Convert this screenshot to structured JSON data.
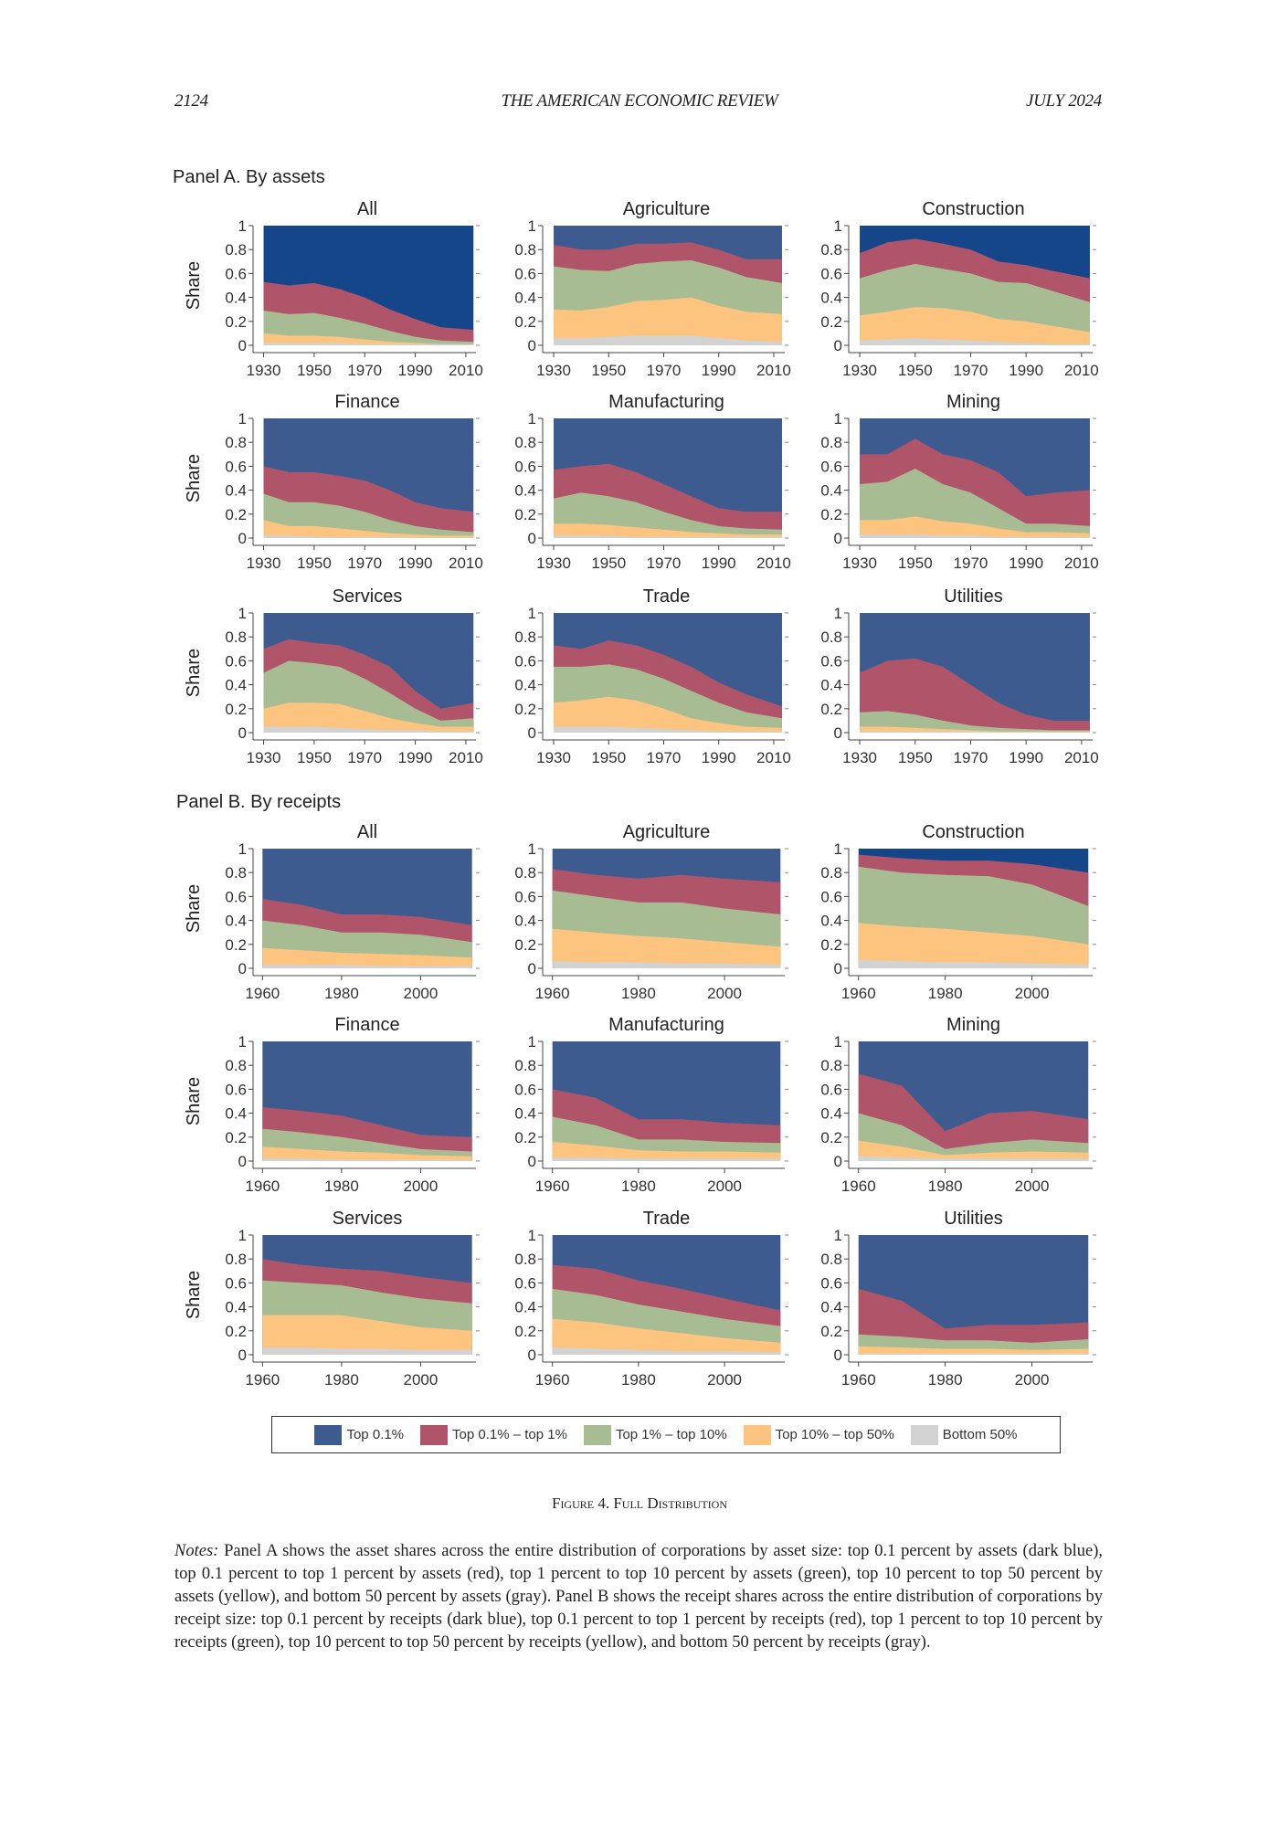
{
  "header": {
    "page_number": "2124",
    "journal": "THE AMERICAN ECONOMIC REVIEW",
    "date": "JULY 2024"
  },
  "panels": [
    {
      "label": "Panel A. By assets"
    },
    {
      "label": "Panel B. By receipts"
    }
  ],
  "legend": [
    {
      "label": "Top 0.1%",
      "color": "#3e5b8f"
    },
    {
      "label": "Top 0.1% – top 1%",
      "color": "#b0546a"
    },
    {
      "label": "Top 1% – top 10%",
      "color": "#a8bc94"
    },
    {
      "label": "Top 10% – top 50%",
      "color": "#fdc47f"
    },
    {
      "label": "Bottom 50%",
      "color": "#d2d2d2"
    }
  ],
  "caption": "Figure 4. Full Distribution",
  "notes": {
    "label": "Notes:",
    "text": "Panel A shows the asset shares across the entire distribution of corporations by asset size: top 0.1 percent by assets (dark blue), top 0.1 percent to top 1 percent by assets (red), top 1 percent to top 10 percent by assets (green), top 10 percent to top 50 percent by assets (yellow), and bottom 50 percent by assets (gray). Panel B shows the receipt shares across the entire distribution of corporations by receipt size: top 0.1 percent by receipts (dark blue), top 0.1 percent to top 1 percent by receipts (red), top 1 percent to top 10 percent by receipts (green), top 10 percent to top 50 percent by receipts (yellow), and bottom 50 percent by receipts (gray)."
  },
  "chart_data": {
    "type": "area",
    "stacking": "cumulative upper boundaries from bottom: Bottom 50%, +Top 10%–top 50%, +Top 1%–top 10%, +Top 0.1%–top 1%; Top 0.1% fills to 1",
    "ylabel": "Share",
    "yticks": [
      "0",
      "0.2",
      "0.4",
      "0.6",
      "0.8",
      "1"
    ],
    "ylim": [
      0,
      1
    ],
    "panelA": {
      "x": [
        1930,
        1940,
        1950,
        1960,
        1970,
        1980,
        1990,
        2000,
        2013
      ],
      "xlim": [
        1928,
        2014
      ],
      "xticks": [
        "1930",
        "1950",
        "1970",
        "1990",
        "2010"
      ],
      "charts": [
        {
          "title": "All",
          "top_color": "#15468a",
          "bottom": [
            0.02,
            0.02,
            0.02,
            0.02,
            0.01,
            0.01,
            0.01,
            0.01,
            0.01
          ],
          "yellow": [
            0.1,
            0.08,
            0.08,
            0.07,
            0.05,
            0.03,
            0.02,
            0.01,
            0.01
          ],
          "green": [
            0.29,
            0.26,
            0.27,
            0.23,
            0.18,
            0.12,
            0.07,
            0.04,
            0.03
          ],
          "red": [
            0.53,
            0.5,
            0.52,
            0.47,
            0.4,
            0.3,
            0.22,
            0.15,
            0.13
          ]
        },
        {
          "title": "Agriculture",
          "top_color": "#3e5b8f",
          "bottom": [
            0.06,
            0.06,
            0.07,
            0.08,
            0.08,
            0.08,
            0.06,
            0.04,
            0.03
          ],
          "yellow": [
            0.3,
            0.29,
            0.32,
            0.37,
            0.38,
            0.4,
            0.33,
            0.28,
            0.26
          ],
          "green": [
            0.66,
            0.63,
            0.62,
            0.68,
            0.7,
            0.71,
            0.65,
            0.57,
            0.52
          ],
          "red": [
            0.84,
            0.8,
            0.8,
            0.85,
            0.85,
            0.86,
            0.8,
            0.72,
            0.72
          ]
        },
        {
          "title": "Construction",
          "top_color": "#15468a",
          "bottom": [
            0.04,
            0.05,
            0.06,
            0.05,
            0.04,
            0.03,
            0.02,
            0.01,
            0.01
          ],
          "yellow": [
            0.25,
            0.28,
            0.32,
            0.31,
            0.28,
            0.22,
            0.2,
            0.16,
            0.11
          ],
          "green": [
            0.56,
            0.63,
            0.68,
            0.64,
            0.6,
            0.53,
            0.52,
            0.45,
            0.36
          ],
          "red": [
            0.77,
            0.86,
            0.89,
            0.85,
            0.8,
            0.7,
            0.67,
            0.62,
            0.56
          ]
        },
        {
          "title": "Finance",
          "top_color": "#3e5b8f",
          "bottom": [
            0.02,
            0.02,
            0.01,
            0.01,
            0.01,
            0.01,
            0.005,
            0.005,
            0.005
          ],
          "yellow": [
            0.15,
            0.1,
            0.1,
            0.08,
            0.06,
            0.04,
            0.03,
            0.02,
            0.02
          ],
          "green": [
            0.37,
            0.3,
            0.3,
            0.27,
            0.22,
            0.15,
            0.1,
            0.07,
            0.05
          ],
          "red": [
            0.6,
            0.55,
            0.55,
            0.52,
            0.48,
            0.4,
            0.3,
            0.25,
            0.22
          ]
        },
        {
          "title": "Manufacturing",
          "top_color": "#3e5b8f",
          "bottom": [
            0.02,
            0.02,
            0.02,
            0.01,
            0.01,
            0.01,
            0.01,
            0.01,
            0.01
          ],
          "yellow": [
            0.12,
            0.12,
            0.11,
            0.09,
            0.07,
            0.05,
            0.04,
            0.03,
            0.03
          ],
          "green": [
            0.33,
            0.38,
            0.35,
            0.3,
            0.22,
            0.15,
            0.1,
            0.08,
            0.07
          ],
          "red": [
            0.57,
            0.6,
            0.62,
            0.55,
            0.45,
            0.35,
            0.25,
            0.22,
            0.22
          ]
        },
        {
          "title": "Mining",
          "top_color": "#3e5b8f",
          "bottom": [
            0.03,
            0.03,
            0.03,
            0.02,
            0.02,
            0.01,
            0.01,
            0.01,
            0.01
          ],
          "yellow": [
            0.15,
            0.15,
            0.18,
            0.14,
            0.12,
            0.08,
            0.05,
            0.05,
            0.04
          ],
          "green": [
            0.45,
            0.47,
            0.58,
            0.45,
            0.38,
            0.25,
            0.12,
            0.12,
            0.1
          ],
          "red": [
            0.7,
            0.7,
            0.83,
            0.7,
            0.65,
            0.55,
            0.35,
            0.38,
            0.4
          ]
        },
        {
          "title": "Services",
          "top_color": "#3e5b8f",
          "bottom": [
            0.05,
            0.05,
            0.05,
            0.04,
            0.03,
            0.02,
            0.02,
            0.01,
            0.01
          ],
          "yellow": [
            0.2,
            0.25,
            0.25,
            0.24,
            0.18,
            0.12,
            0.08,
            0.05,
            0.05
          ],
          "green": [
            0.5,
            0.6,
            0.58,
            0.55,
            0.45,
            0.33,
            0.2,
            0.1,
            0.12
          ],
          "red": [
            0.7,
            0.78,
            0.75,
            0.73,
            0.65,
            0.55,
            0.35,
            0.2,
            0.25
          ]
        },
        {
          "title": "Trade",
          "top_color": "#3e5b8f",
          "bottom": [
            0.05,
            0.05,
            0.05,
            0.04,
            0.03,
            0.02,
            0.01,
            0.01,
            0.01
          ],
          "yellow": [
            0.25,
            0.27,
            0.3,
            0.27,
            0.2,
            0.12,
            0.08,
            0.05,
            0.04
          ],
          "green": [
            0.55,
            0.55,
            0.57,
            0.53,
            0.45,
            0.35,
            0.25,
            0.17,
            0.12
          ],
          "red": [
            0.73,
            0.7,
            0.77,
            0.73,
            0.65,
            0.55,
            0.42,
            0.32,
            0.22
          ]
        },
        {
          "title": "Utilities",
          "top_color": "#3e5b8f",
          "bottom": [
            0.01,
            0.01,
            0.01,
            0.01,
            0.01,
            0.005,
            0.005,
            0.005,
            0.005
          ],
          "yellow": [
            0.05,
            0.05,
            0.04,
            0.03,
            0.02,
            0.01,
            0.01,
            0.01,
            0.01
          ],
          "green": [
            0.17,
            0.18,
            0.15,
            0.1,
            0.06,
            0.04,
            0.03,
            0.02,
            0.02
          ],
          "red": [
            0.5,
            0.6,
            0.62,
            0.55,
            0.4,
            0.25,
            0.15,
            0.1,
            0.1
          ]
        }
      ]
    },
    "panelB": {
      "x": [
        1960,
        1970,
        1980,
        1990,
        2000,
        2013
      ],
      "xlim": [
        1959,
        2014
      ],
      "xticks": [
        "1960",
        "1980",
        "2000"
      ],
      "charts": [
        {
          "title": "All",
          "top_color": "#3e5b8f",
          "bottom": [
            0.03,
            0.03,
            0.03,
            0.02,
            0.02,
            0.02
          ],
          "yellow": [
            0.17,
            0.15,
            0.13,
            0.12,
            0.11,
            0.09
          ],
          "green": [
            0.4,
            0.36,
            0.3,
            0.3,
            0.28,
            0.22
          ],
          "red": [
            0.58,
            0.53,
            0.45,
            0.45,
            0.43,
            0.36
          ]
        },
        {
          "title": "Agriculture",
          "top_color": "#3e5b8f",
          "bottom": [
            0.06,
            0.05,
            0.05,
            0.04,
            0.04,
            0.03
          ],
          "yellow": [
            0.33,
            0.3,
            0.27,
            0.25,
            0.22,
            0.18
          ],
          "green": [
            0.65,
            0.6,
            0.55,
            0.55,
            0.5,
            0.45
          ],
          "red": [
            0.83,
            0.78,
            0.75,
            0.78,
            0.75,
            0.72
          ]
        },
        {
          "title": "Construction",
          "top_color": "#15468a",
          "bottom": [
            0.07,
            0.06,
            0.05,
            0.05,
            0.04,
            0.03
          ],
          "yellow": [
            0.38,
            0.35,
            0.33,
            0.3,
            0.27,
            0.2
          ],
          "green": [
            0.85,
            0.8,
            0.78,
            0.77,
            0.7,
            0.52
          ],
          "red": [
            0.95,
            0.92,
            0.9,
            0.9,
            0.87,
            0.8
          ]
        },
        {
          "title": "Finance",
          "top_color": "#3e5b8f",
          "bottom": [
            0.02,
            0.02,
            0.01,
            0.01,
            0.01,
            0.01
          ],
          "yellow": [
            0.12,
            0.1,
            0.08,
            0.07,
            0.05,
            0.04
          ],
          "green": [
            0.27,
            0.24,
            0.2,
            0.15,
            0.1,
            0.08
          ],
          "red": [
            0.45,
            0.42,
            0.38,
            0.3,
            0.22,
            0.2
          ]
        },
        {
          "title": "Manufacturing",
          "top_color": "#3e5b8f",
          "bottom": [
            0.03,
            0.03,
            0.02,
            0.02,
            0.02,
            0.02
          ],
          "yellow": [
            0.16,
            0.13,
            0.09,
            0.08,
            0.08,
            0.07
          ],
          "green": [
            0.37,
            0.3,
            0.18,
            0.18,
            0.16,
            0.15
          ],
          "red": [
            0.6,
            0.53,
            0.35,
            0.35,
            0.32,
            0.3
          ]
        },
        {
          "title": "Mining",
          "top_color": "#3e5b8f",
          "bottom": [
            0.04,
            0.03,
            0.02,
            0.02,
            0.02,
            0.02
          ],
          "yellow": [
            0.17,
            0.12,
            0.05,
            0.07,
            0.08,
            0.07
          ],
          "green": [
            0.4,
            0.3,
            0.1,
            0.15,
            0.18,
            0.15
          ],
          "red": [
            0.73,
            0.63,
            0.25,
            0.4,
            0.42,
            0.35
          ]
        },
        {
          "title": "Services",
          "top_color": "#3e5b8f",
          "bottom": [
            0.06,
            0.06,
            0.05,
            0.05,
            0.04,
            0.04
          ],
          "yellow": [
            0.33,
            0.33,
            0.33,
            0.28,
            0.23,
            0.2
          ],
          "green": [
            0.62,
            0.6,
            0.58,
            0.52,
            0.47,
            0.43
          ],
          "red": [
            0.8,
            0.75,
            0.72,
            0.7,
            0.65,
            0.6
          ]
        },
        {
          "title": "Trade",
          "top_color": "#3e5b8f",
          "bottom": [
            0.06,
            0.05,
            0.04,
            0.03,
            0.03,
            0.02
          ],
          "yellow": [
            0.3,
            0.27,
            0.22,
            0.18,
            0.14,
            0.1
          ],
          "green": [
            0.55,
            0.5,
            0.42,
            0.36,
            0.3,
            0.24
          ],
          "red": [
            0.75,
            0.72,
            0.62,
            0.55,
            0.47,
            0.37
          ]
        },
        {
          "title": "Utilities",
          "top_color": "#3e5b8f",
          "bottom": [
            0.01,
            0.01,
            0.01,
            0.01,
            0.01,
            0.01
          ],
          "yellow": [
            0.07,
            0.06,
            0.05,
            0.05,
            0.04,
            0.05
          ],
          "green": [
            0.17,
            0.15,
            0.12,
            0.12,
            0.1,
            0.13
          ],
          "red": [
            0.55,
            0.45,
            0.22,
            0.25,
            0.25,
            0.27
          ]
        }
      ]
    }
  }
}
